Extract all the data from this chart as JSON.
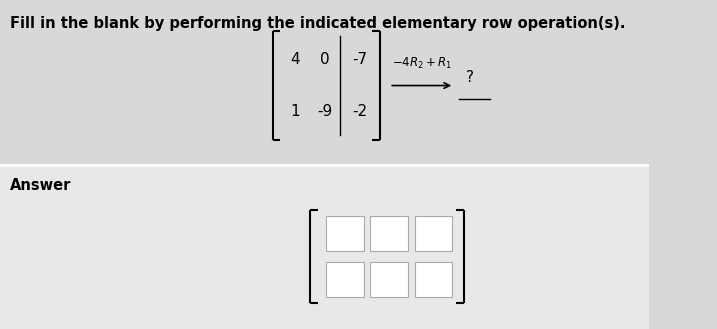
{
  "title": "Fill in the blank by performing the indicated elementary row operation(s).",
  "title_fontsize": 10.5,
  "background_color": "#d8d8d8",
  "answer_section_color": "#e8e8e8",
  "matrix_orig": [
    [
      4,
      0,
      -7
    ],
    [
      1,
      -9,
      -2
    ]
  ],
  "operation_label": "$-4R_2+R_1$",
  "question_mark": "?",
  "answer_label": "Answer"
}
